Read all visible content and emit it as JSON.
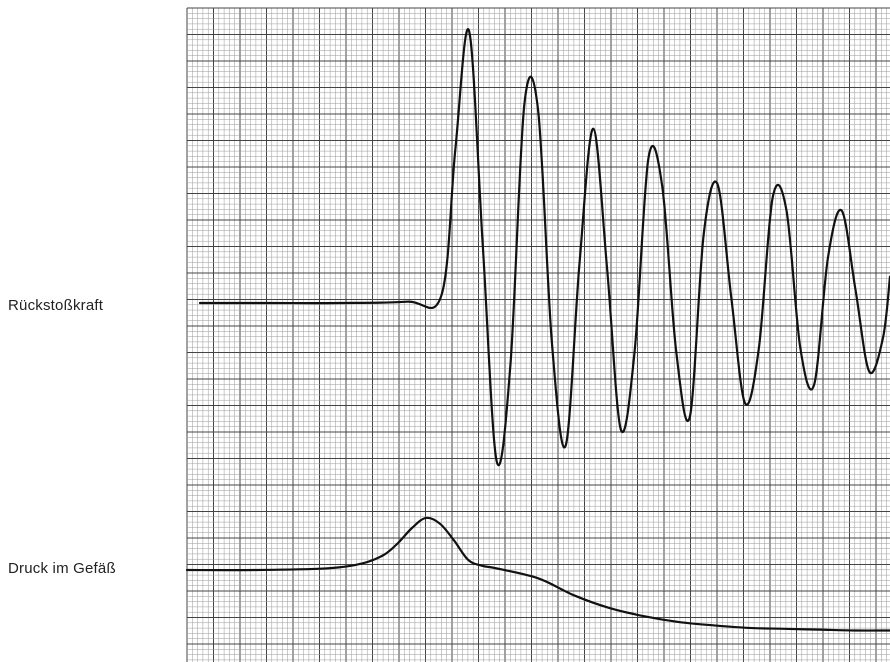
{
  "chart_data": {
    "type": "line",
    "grid": true,
    "series": [
      {
        "name": "Rückstoßkraft",
        "x": [
          0,
          10,
          20,
          30,
          35,
          37,
          39,
          41,
          43,
          45,
          47,
          49,
          51,
          53,
          55,
          57,
          59,
          61,
          63,
          65,
          67,
          69,
          71,
          73,
          75,
          77,
          79,
          81,
          83,
          85,
          87,
          89,
          91,
          93,
          95,
          97,
          99,
          100
        ],
        "y": [
          0,
          0,
          0,
          0.05,
          0.3,
          5.8,
          10.3,
          2.1,
          -6.0,
          -2.3,
          7.5,
          7.3,
          -1.5,
          -5.4,
          1.5,
          6.6,
          1.3,
          -4.8,
          -1.8,
          5.5,
          4.4,
          -1.8,
          -4.3,
          2.6,
          4.5,
          0.2,
          -3.8,
          -1.7,
          4.0,
          3.5,
          -1.7,
          -3.1,
          1.7,
          3.5,
          0.5,
          -2.6,
          -1.3,
          1.0
        ],
        "color": "#111111"
      },
      {
        "name": "Druck im Gefäß",
        "x": [
          0,
          10,
          20,
          25,
          28,
          30,
          32,
          34,
          36,
          38,
          40,
          42,
          44,
          50,
          55,
          60,
          65,
          70,
          75,
          80,
          85,
          90,
          95,
          100
        ],
        "y": [
          0,
          0,
          0.02,
          0.08,
          0.18,
          0.32,
          0.5,
          0.62,
          0.55,
          0.35,
          0.12,
          0.05,
          0.02,
          -0.1,
          -0.3,
          -0.45,
          -0.55,
          -0.62,
          -0.66,
          -0.69,
          -0.7,
          -0.71,
          -0.72,
          -0.72
        ],
        "color": "#111111"
      }
    ]
  },
  "labels": {
    "force": "Rückstoßkraft",
    "pressure": "Druck im Gefäß"
  }
}
